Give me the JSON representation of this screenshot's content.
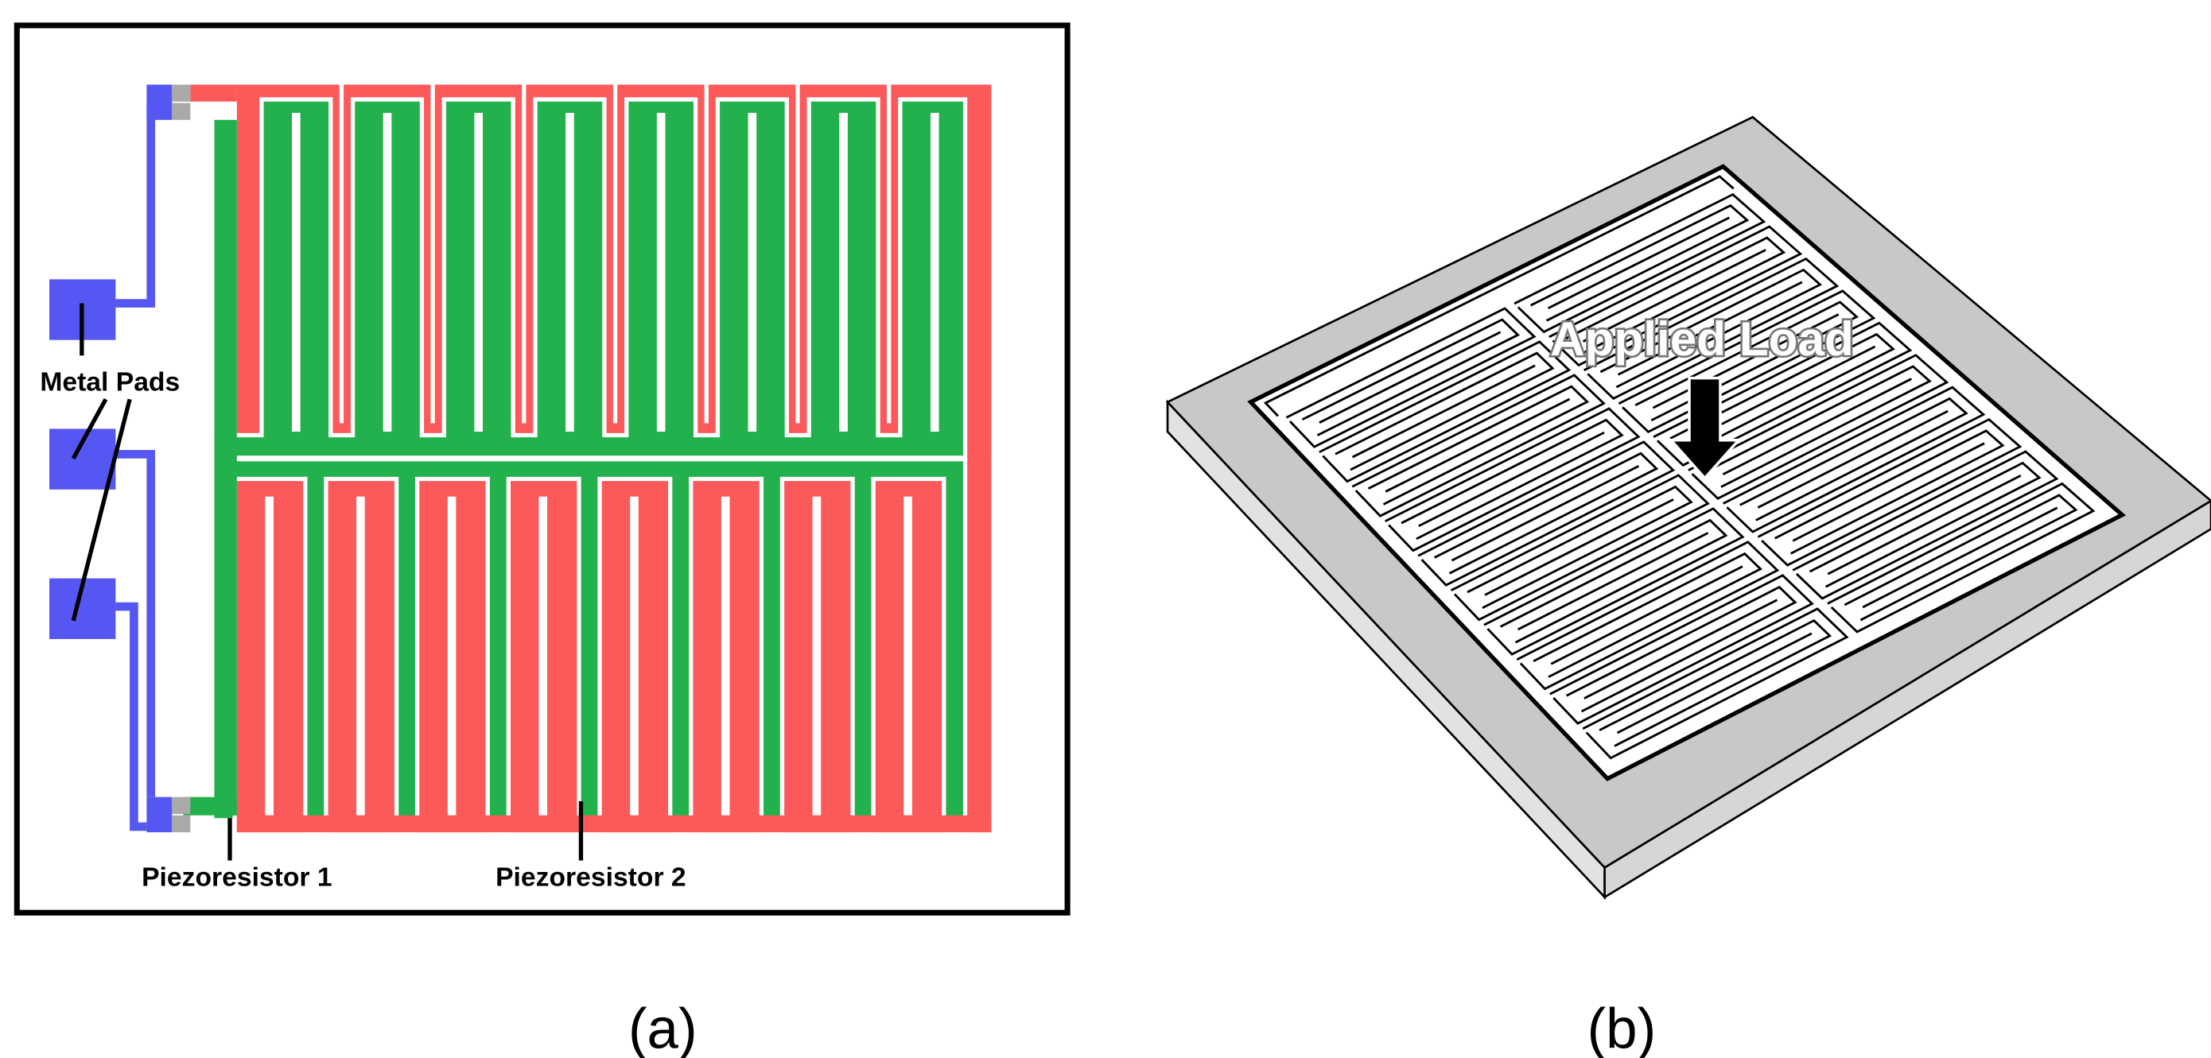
{
  "panel_a": {
    "labels": {
      "metal_pads": "Metal Pads",
      "piezoresistor_1": "Piezoresistor 1",
      "piezoresistor_2": "Piezoresistor 2"
    },
    "caption": "(a)"
  },
  "panel_b": {
    "label": "Applied Load",
    "caption": "(b)"
  }
}
